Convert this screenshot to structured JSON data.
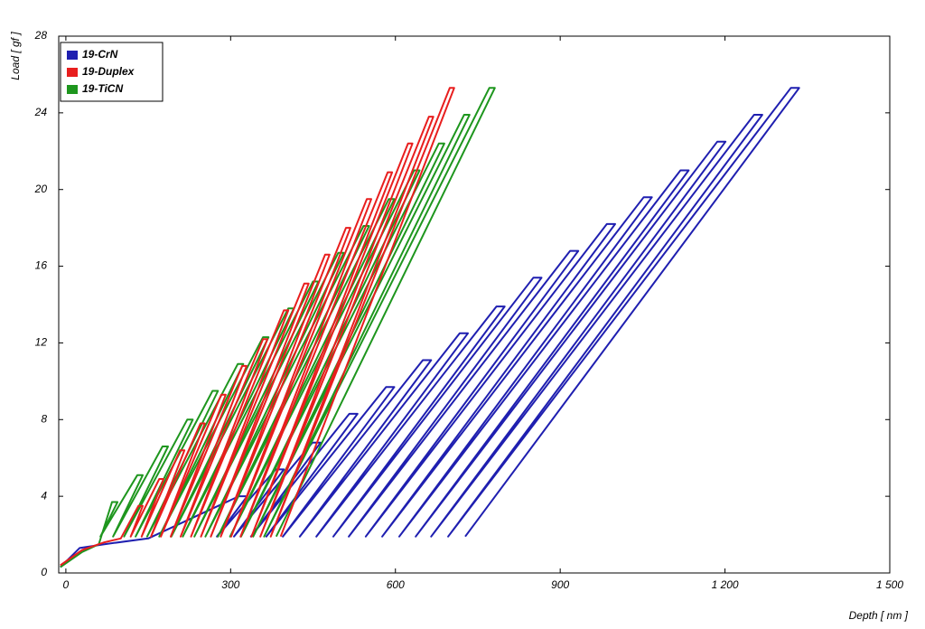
{
  "chart_data": {
    "type": "line",
    "xlabel": "Depth [ nm ]",
    "ylabel": "Load [ gf ]",
    "xlim": [
      -13,
      1500
    ],
    "ylim": [
      0,
      28
    ],
    "xticks": [
      0,
      300,
      600,
      900,
      {
        "value": 1200,
        "label": "1 200"
      },
      {
        "value": 1500,
        "label": "1 500"
      }
    ],
    "yticks": [
      0,
      4,
      8,
      12,
      16,
      20,
      24,
      28
    ],
    "legend": "upper left",
    "series": [
      {
        "name": "19-CrN",
        "color": "#1f1fb0",
        "x": [
          -10,
          25,
          70,
          150,
          315,
          330,
          275,
          382,
          397,
          306,
          449,
          464,
          337,
          516,
          531,
          365,
          583,
          598,
          395,
          650,
          665,
          426,
          717,
          732,
          456,
          784,
          799,
          487,
          851,
          866,
          515,
          918,
          933,
          546,
          985,
          1000,
          576,
          1052,
          1067,
          607,
          1119,
          1134,
          637,
          1186,
          1201,
          665,
          1253,
          1268,
          696,
          1320,
          1335,
          727
        ],
        "values": [
          0.3,
          1.3,
          1.5,
          1.8,
          4.0,
          4.0,
          1.9,
          5.4,
          5.4,
          1.9,
          6.8,
          6.8,
          1.9,
          8.3,
          8.3,
          1.9,
          9.7,
          9.7,
          1.9,
          11.1,
          11.1,
          1.9,
          12.5,
          12.5,
          1.9,
          13.9,
          13.9,
          1.9,
          15.4,
          15.4,
          1.9,
          16.8,
          16.8,
          1.9,
          18.2,
          18.2,
          1.9,
          19.6,
          19.6,
          1.9,
          21.0,
          21.0,
          1.9,
          22.5,
          22.5,
          1.9,
          23.9,
          23.9,
          1.9,
          25.3,
          25.3,
          1.9
        ]
      },
      {
        "name": "19-Duplex",
        "color": "#e81e1e",
        "x": [
          -10,
          30,
          70,
          100,
          132,
          140,
          118,
          170,
          178,
          138,
          208,
          216,
          155,
          245,
          253,
          173,
          283,
          291,
          191,
          321,
          329,
          209,
          359,
          367,
          228,
          397,
          405,
          246,
          434,
          442,
          264,
          472,
          480,
          282,
          510,
          518,
          301,
          548,
          556,
          318,
          586,
          594,
          338,
          623,
          631,
          354,
          661,
          669,
          373,
          699,
          707,
          391
        ],
        "values": [
          0.4,
          1.2,
          1.6,
          1.8,
          3.5,
          3.5,
          1.9,
          4.9,
          4.9,
          1.9,
          6.4,
          6.4,
          1.9,
          7.8,
          7.8,
          1.9,
          9.3,
          9.3,
          1.9,
          10.8,
          10.8,
          1.9,
          12.2,
          12.2,
          1.9,
          13.7,
          13.7,
          1.9,
          15.1,
          15.1,
          1.9,
          16.6,
          16.6,
          1.9,
          18.0,
          18.0,
          1.9,
          19.5,
          19.5,
          1.9,
          20.9,
          20.9,
          1.9,
          22.4,
          22.4,
          1.9,
          23.8,
          23.8,
          1.9,
          25.3,
          25.3,
          1.9
        ]
      },
      {
        "name": "19-TiCN",
        "color": "#1e961e",
        "x": [
          -10,
          30,
          60,
          84,
          94,
          63,
          130,
          140,
          86,
          176,
          186,
          106,
          221,
          231,
          127,
          267,
          277,
          148,
          313,
          323,
          170,
          359,
          369,
          192,
          405,
          415,
          213,
          450,
          460,
          234,
          496,
          506,
          254,
          542,
          552,
          277,
          588,
          598,
          299,
          634,
          644,
          319,
          679,
          689,
          341,
          725,
          735,
          361,
          771,
          781,
          383
        ],
        "values": [
          0.3,
          1.1,
          1.5,
          3.7,
          3.7,
          1.9,
          5.1,
          5.1,
          1.9,
          6.6,
          6.6,
          1.9,
          8.0,
          8.0,
          1.9,
          9.5,
          9.5,
          1.9,
          10.9,
          10.9,
          1.9,
          12.3,
          12.3,
          1.9,
          13.8,
          13.8,
          1.9,
          15.2,
          15.2,
          1.9,
          16.7,
          16.7,
          1.9,
          18.1,
          18.1,
          1.9,
          19.5,
          19.5,
          1.9,
          21.0,
          21.0,
          1.9,
          22.4,
          22.4,
          1.9,
          23.9,
          23.9,
          1.9,
          25.3,
          25.3,
          1.9
        ]
      }
    ]
  }
}
